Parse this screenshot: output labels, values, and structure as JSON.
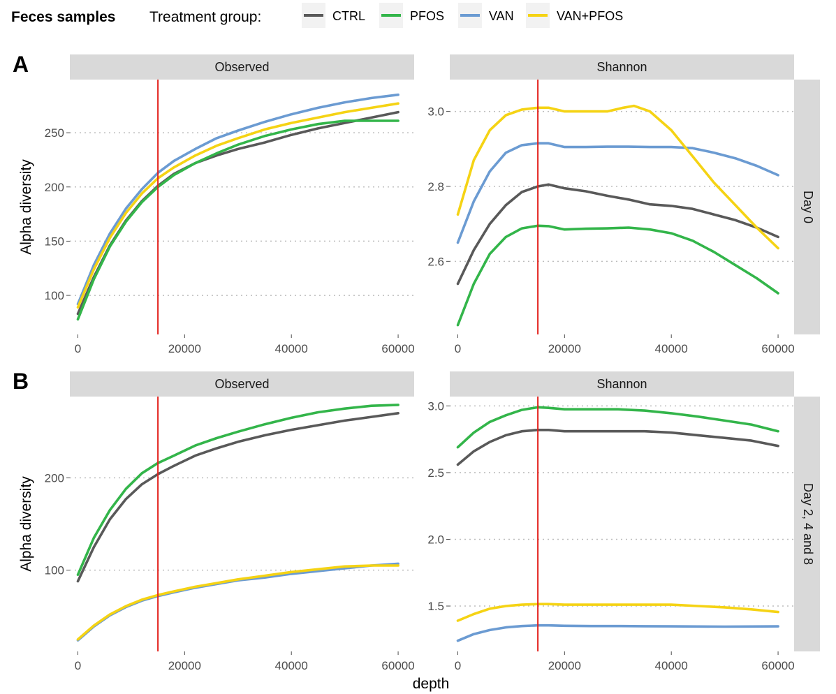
{
  "legend": {
    "title_bold": "Feces samples",
    "title": "Treatment group:",
    "items": [
      {
        "label": "CTRL",
        "color": "#595959"
      },
      {
        "label": "PFOS",
        "color": "#33b54a"
      },
      {
        "label": "VAN",
        "color": "#6b9bd2"
      },
      {
        "label": "VAN+PFOS",
        "color": "#f5d314"
      }
    ]
  },
  "rarefaction_line": {
    "x": 15000,
    "color": "#e3201b"
  },
  "shared_xlabel": "depth",
  "chart_data": [
    {
      "type": "line",
      "panel_tag": "A",
      "facet_col": "Observed",
      "facet_row": "",
      "ylabel": "Alpha diversity",
      "xlim": [
        -1500,
        63000
      ],
      "ylim": [
        64,
        299
      ],
      "xticks": [
        0,
        20000,
        40000,
        60000
      ],
      "yticks": [
        100,
        150,
        200,
        250
      ],
      "grid": "horizontal dotted",
      "series": [
        {
          "name": "CTRL",
          "color": "#595959",
          "x": [
            0,
            3000,
            6000,
            9000,
            12000,
            15000,
            18000,
            22000,
            26000,
            30000,
            35000,
            40000,
            45000,
            50000,
            55000,
            60000
          ],
          "y": [
            83,
            117,
            146,
            169,
            187,
            201,
            212,
            222,
            229,
            235,
            241,
            248,
            254,
            259,
            264,
            269
          ]
        },
        {
          "name": "PFOS",
          "color": "#33b54a",
          "x": [
            0,
            3000,
            6000,
            9000,
            12000,
            15000,
            18000,
            22000,
            26000,
            30000,
            35000,
            40000,
            45000,
            50000,
            55000,
            60000
          ],
          "y": [
            78,
            115,
            145,
            168,
            186,
            200,
            211,
            222,
            231,
            239,
            247,
            253,
            258,
            261,
            261,
            261
          ]
        },
        {
          "name": "VAN",
          "color": "#6b9bd2",
          "x": [
            0,
            3000,
            6000,
            9000,
            12000,
            15000,
            18000,
            22000,
            26000,
            30000,
            35000,
            40000,
            45000,
            50000,
            55000,
            60000
          ],
          "y": [
            92,
            128,
            157,
            180,
            198,
            213,
            224,
            235,
            245,
            252,
            260,
            267,
            273,
            278,
            282,
            285
          ]
        },
        {
          "name": "VAN+PFOS",
          "color": "#f5d314",
          "x": [
            0,
            3000,
            6000,
            9000,
            12000,
            15000,
            18000,
            22000,
            26000,
            30000,
            35000,
            40000,
            45000,
            50000,
            55000,
            60000
          ],
          "y": [
            89,
            124,
            153,
            176,
            194,
            208,
            218,
            229,
            238,
            245,
            253,
            259,
            264,
            269,
            273,
            277
          ]
        }
      ]
    },
    {
      "type": "line",
      "panel_tag": "",
      "facet_col": "Shannon",
      "facet_row": "Day 0",
      "ylabel": "",
      "xlim": [
        -1500,
        63000
      ],
      "ylim": [
        2.405,
        3.085
      ],
      "xticks": [
        0,
        20000,
        40000,
        60000
      ],
      "yticks": [
        2.6,
        2.8,
        3.0
      ],
      "grid": "horizontal dotted",
      "series": [
        {
          "name": "CTRL",
          "color": "#595959",
          "x": [
            0,
            3000,
            6000,
            9000,
            12000,
            15000,
            17000,
            20000,
            24000,
            28000,
            32000,
            36000,
            40000,
            44000,
            48000,
            52000,
            56000,
            60000
          ],
          "y": [
            2.54,
            2.63,
            2.7,
            2.75,
            2.785,
            2.8,
            2.805,
            2.795,
            2.787,
            2.775,
            2.765,
            2.752,
            2.748,
            2.74,
            2.725,
            2.71,
            2.69,
            2.665
          ]
        },
        {
          "name": "PFOS",
          "color": "#33b54a",
          "x": [
            0,
            3000,
            6000,
            9000,
            12000,
            15000,
            17000,
            20000,
            24000,
            28000,
            32000,
            36000,
            40000,
            44000,
            48000,
            52000,
            56000,
            60000
          ],
          "y": [
            2.43,
            2.54,
            2.62,
            2.665,
            2.688,
            2.695,
            2.694,
            2.685,
            2.687,
            2.688,
            2.69,
            2.685,
            2.675,
            2.655,
            2.625,
            2.59,
            2.555,
            2.515
          ]
        },
        {
          "name": "VAN",
          "color": "#6b9bd2",
          "x": [
            0,
            3000,
            6000,
            9000,
            12000,
            15000,
            17000,
            20000,
            24000,
            28000,
            32000,
            36000,
            40000,
            44000,
            48000,
            52000,
            56000,
            60000
          ],
          "y": [
            2.65,
            2.76,
            2.84,
            2.89,
            2.91,
            2.915,
            2.915,
            2.905,
            2.905,
            2.906,
            2.906,
            2.905,
            2.905,
            2.902,
            2.89,
            2.875,
            2.855,
            2.83
          ]
        },
        {
          "name": "VAN+PFOS",
          "color": "#f5d314",
          "x": [
            0,
            3000,
            6000,
            9000,
            12000,
            15000,
            17000,
            20000,
            24000,
            28000,
            31000,
            33000,
            36000,
            40000,
            44000,
            48000,
            52000,
            56000,
            60000
          ],
          "y": [
            2.725,
            2.87,
            2.95,
            2.99,
            3.005,
            3.01,
            3.01,
            3.0,
            3.0,
            3.0,
            3.01,
            3.015,
            3.0,
            2.95,
            2.88,
            2.81,
            2.75,
            2.69,
            2.635
          ]
        }
      ]
    },
    {
      "type": "line",
      "panel_tag": "B",
      "facet_col": "Observed",
      "facet_row": "",
      "ylabel": "Alpha diversity",
      "xlim": [
        -1500,
        63000
      ],
      "ylim": [
        12,
        288
      ],
      "xticks": [
        0,
        20000,
        40000,
        60000
      ],
      "yticks": [
        100,
        200
      ],
      "grid": "horizontal dotted",
      "series": [
        {
          "name": "CTRL",
          "color": "#595959",
          "x": [
            0,
            3000,
            6000,
            9000,
            12000,
            15000,
            18000,
            22000,
            26000,
            30000,
            35000,
            40000,
            45000,
            50000,
            55000,
            60000
          ],
          "y": [
            88,
            125,
            155,
            177,
            193,
            204,
            213,
            224,
            232,
            239,
            246,
            252,
            257,
            262,
            266,
            270
          ]
        },
        {
          "name": "PFOS",
          "color": "#33b54a",
          "x": [
            0,
            3000,
            6000,
            9000,
            12000,
            15000,
            18000,
            22000,
            26000,
            30000,
            35000,
            40000,
            45000,
            50000,
            55000,
            60000
          ],
          "y": [
            95,
            135,
            165,
            188,
            205,
            216,
            224,
            235,
            243,
            250,
            258,
            265,
            271,
            275,
            278,
            279
          ]
        },
        {
          "name": "VAN",
          "color": "#6b9bd2",
          "x": [
            0,
            3000,
            6000,
            9000,
            12000,
            15000,
            18000,
            22000,
            26000,
            30000,
            35000,
            40000,
            45000,
            50000,
            55000,
            60000
          ],
          "y": [
            24,
            39,
            51,
            60,
            67,
            72,
            76,
            81,
            85,
            89,
            92,
            96,
            99,
            102,
            105,
            107
          ]
        },
        {
          "name": "VAN+PFOS",
          "color": "#f5d314",
          "x": [
            0,
            3000,
            6000,
            9000,
            12000,
            15000,
            18000,
            22000,
            26000,
            30000,
            35000,
            40000,
            45000,
            50000,
            55000,
            60000
          ],
          "y": [
            25,
            40,
            52,
            61,
            68,
            73,
            77,
            82,
            86,
            90,
            94,
            98,
            101,
            104,
            105,
            105
          ]
        }
      ]
    },
    {
      "type": "line",
      "panel_tag": "",
      "facet_col": "Shannon",
      "facet_row": "Day 2, 4 and 8",
      "ylabel": "",
      "xlim": [
        -1500,
        63000
      ],
      "ylim": [
        1.16,
        3.07
      ],
      "xticks": [
        0,
        20000,
        40000,
        60000
      ],
      "yticks": [
        1.5,
        2.0,
        2.5,
        3.0
      ],
      "grid": "horizontal dotted",
      "series": [
        {
          "name": "CTRL",
          "color": "#595959",
          "x": [
            0,
            3000,
            6000,
            9000,
            12000,
            15000,
            17000,
            20000,
            25000,
            30000,
            35000,
            40000,
            45000,
            50000,
            55000,
            60000
          ],
          "y": [
            2.56,
            2.66,
            2.73,
            2.78,
            2.81,
            2.82,
            2.82,
            2.81,
            2.81,
            2.81,
            2.81,
            2.8,
            2.78,
            2.76,
            2.74,
            2.7
          ]
        },
        {
          "name": "PFOS",
          "color": "#33b54a",
          "x": [
            0,
            3000,
            6000,
            9000,
            12000,
            15000,
            17000,
            20000,
            25000,
            30000,
            35000,
            40000,
            45000,
            50000,
            55000,
            60000
          ],
          "y": [
            2.69,
            2.8,
            2.88,
            2.93,
            2.97,
            2.99,
            2.985,
            2.975,
            2.975,
            2.975,
            2.965,
            2.945,
            2.92,
            2.89,
            2.86,
            2.81
          ]
        },
        {
          "name": "VAN",
          "color": "#6b9bd2",
          "x": [
            0,
            3000,
            6000,
            9000,
            12000,
            15000,
            17000,
            20000,
            25000,
            30000,
            35000,
            40000,
            45000,
            50000,
            55000,
            60000
          ],
          "y": [
            1.24,
            1.29,
            1.32,
            1.34,
            1.35,
            1.355,
            1.355,
            1.352,
            1.35,
            1.35,
            1.349,
            1.348,
            1.347,
            1.346,
            1.347,
            1.348
          ]
        },
        {
          "name": "VAN+PFOS",
          "color": "#f5d314",
          "x": [
            0,
            3000,
            6000,
            9000,
            12000,
            15000,
            17000,
            20000,
            25000,
            30000,
            35000,
            40000,
            45000,
            50000,
            55000,
            60000
          ],
          "y": [
            1.39,
            1.44,
            1.48,
            1.5,
            1.51,
            1.515,
            1.515,
            1.51,
            1.51,
            1.51,
            1.51,
            1.51,
            1.5,
            1.49,
            1.475,
            1.455
          ]
        }
      ]
    }
  ]
}
